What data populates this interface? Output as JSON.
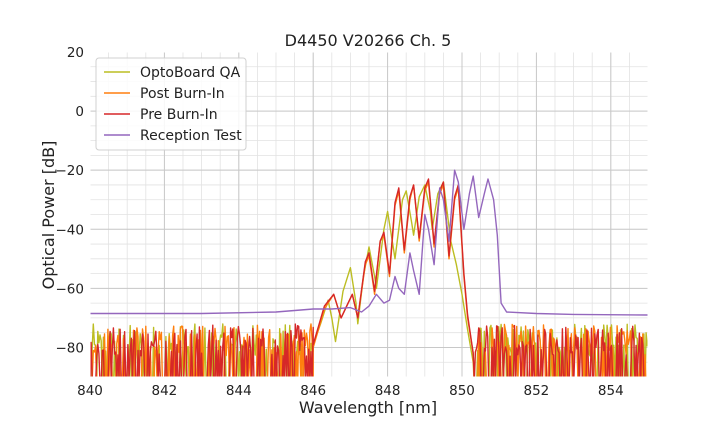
{
  "chart_data": {
    "type": "line",
    "title": "D4450 V20266 Ch. 5",
    "xlabel": "Wavelength [nm]",
    "ylabel": "Optical Power [dB]",
    "xlim": [
      840,
      855
    ],
    "ylim": [
      -90,
      20
    ],
    "xticks": [
      840,
      842,
      844,
      846,
      848,
      850,
      852,
      854
    ],
    "xtick_labels": [
      "840",
      "842",
      "844",
      "846",
      "848",
      "850",
      "852",
      "854"
    ],
    "yticks": [
      20,
      0,
      -20,
      -40,
      -60,
      -80
    ],
    "ytick_labels": [
      "20",
      "0",
      "−20",
      "−40",
      "−60",
      "−80"
    ],
    "grid": true,
    "minor_grid": true,
    "legend_position": "top-left",
    "noise_floor_note": "Traces OptoBoard QA, Post Burn-In and Pre Burn-In drop into a noisy floor between about -90 and -72 dB outside the 846–850.3 nm signal band",
    "series": [
      {
        "name": "OptoBoard QA",
        "color": "#bcbd22",
        "points": [
          [
            846.0,
            -79
          ],
          [
            846.2,
            -72
          ],
          [
            846.4,
            -64
          ],
          [
            846.5,
            -70
          ],
          [
            846.6,
            -78
          ],
          [
            846.8,
            -61
          ],
          [
            847.0,
            -53
          ],
          [
            847.15,
            -65
          ],
          [
            847.2,
            -72
          ],
          [
            847.35,
            -56
          ],
          [
            847.5,
            -46
          ],
          [
            847.65,
            -56
          ],
          [
            847.7,
            -60
          ],
          [
            847.9,
            -40
          ],
          [
            848.0,
            -34
          ],
          [
            848.15,
            -46
          ],
          [
            848.2,
            -50
          ],
          [
            848.4,
            -30
          ],
          [
            848.5,
            -27
          ],
          [
            848.65,
            -38
          ],
          [
            848.7,
            -42
          ],
          [
            848.85,
            -29
          ],
          [
            849.0,
            -25
          ],
          [
            849.15,
            -34
          ],
          [
            849.2,
            -40
          ],
          [
            849.35,
            -28
          ],
          [
            849.5,
            -24
          ],
          [
            849.6,
            -34
          ],
          [
            849.7,
            -44
          ],
          [
            849.85,
            -52
          ],
          [
            850.0,
            -62
          ],
          [
            850.15,
            -74
          ],
          [
            850.3,
            -85
          ]
        ]
      },
      {
        "name": "Post Burn-In",
        "color": "#ff7f0e",
        "points": [
          [
            846.0,
            -80
          ],
          [
            846.3,
            -67
          ],
          [
            846.55,
            -62
          ],
          [
            846.75,
            -70
          ],
          [
            846.9,
            -66
          ],
          [
            847.05,
            -62
          ],
          [
            847.2,
            -70
          ],
          [
            847.4,
            -52
          ],
          [
            847.5,
            -49
          ],
          [
            847.65,
            -62
          ],
          [
            847.8,
            -44
          ],
          [
            847.9,
            -42
          ],
          [
            848.05,
            -56
          ],
          [
            848.2,
            -32
          ],
          [
            848.3,
            -27
          ],
          [
            848.45,
            -48
          ],
          [
            848.6,
            -30
          ],
          [
            848.7,
            -25
          ],
          [
            848.85,
            -44
          ],
          [
            849.0,
            -27
          ],
          [
            849.1,
            -24
          ],
          [
            849.25,
            -46
          ],
          [
            849.4,
            -28
          ],
          [
            849.5,
            -25
          ],
          [
            849.65,
            -50
          ],
          [
            849.8,
            -30
          ],
          [
            849.9,
            -26
          ],
          [
            850.05,
            -56
          ],
          [
            850.15,
            -70
          ],
          [
            850.3,
            -82
          ]
        ]
      },
      {
        "name": "Pre Burn-In",
        "color": "#d62728",
        "points": [
          [
            846.0,
            -79
          ],
          [
            846.3,
            -66
          ],
          [
            846.55,
            -62
          ],
          [
            846.75,
            -70
          ],
          [
            846.9,
            -66
          ],
          [
            847.05,
            -62
          ],
          [
            847.2,
            -70
          ],
          [
            847.4,
            -51
          ],
          [
            847.5,
            -48
          ],
          [
            847.65,
            -61
          ],
          [
            847.8,
            -44
          ],
          [
            847.9,
            -41
          ],
          [
            848.05,
            -55
          ],
          [
            848.2,
            -31
          ],
          [
            848.3,
            -26
          ],
          [
            848.45,
            -47
          ],
          [
            848.6,
            -29
          ],
          [
            848.7,
            -25
          ],
          [
            848.85,
            -43
          ],
          [
            849.0,
            -26
          ],
          [
            849.1,
            -23
          ],
          [
            849.25,
            -45
          ],
          [
            849.4,
            -27
          ],
          [
            849.5,
            -24
          ],
          [
            849.65,
            -49
          ],
          [
            849.8,
            -29
          ],
          [
            849.9,
            -25
          ],
          [
            850.05,
            -55
          ],
          [
            850.15,
            -69
          ],
          [
            850.3,
            -82
          ]
        ]
      },
      {
        "name": "Reception Test",
        "color": "#9467bd",
        "points": [
          [
            840.0,
            -68.5
          ],
          [
            843.0,
            -68.5
          ],
          [
            845.0,
            -68
          ],
          [
            846.0,
            -67
          ],
          [
            846.5,
            -67
          ],
          [
            847.0,
            -66.5
          ],
          [
            847.3,
            -68
          ],
          [
            847.5,
            -66
          ],
          [
            847.7,
            -62
          ],
          [
            847.9,
            -65
          ],
          [
            848.05,
            -64
          ],
          [
            848.2,
            -56
          ],
          [
            848.3,
            -60
          ],
          [
            848.45,
            -62
          ],
          [
            848.6,
            -48
          ],
          [
            848.7,
            -54
          ],
          [
            848.85,
            -62
          ],
          [
            849.0,
            -35
          ],
          [
            849.1,
            -40
          ],
          [
            849.25,
            -52
          ],
          [
            849.4,
            -26
          ],
          [
            849.5,
            -30
          ],
          [
            849.65,
            -44
          ],
          [
            849.8,
            -20
          ],
          [
            849.9,
            -24
          ],
          [
            850.05,
            -40
          ],
          [
            850.2,
            -28
          ],
          [
            850.3,
            -22
          ],
          [
            850.45,
            -36
          ],
          [
            850.6,
            -28
          ],
          [
            850.7,
            -23
          ],
          [
            850.85,
            -30
          ],
          [
            850.95,
            -42
          ],
          [
            851.05,
            -65
          ],
          [
            851.2,
            -68
          ],
          [
            852.0,
            -68.5
          ],
          [
            853.0,
            -68.8
          ],
          [
            855.0,
            -69
          ]
        ]
      }
    ]
  }
}
